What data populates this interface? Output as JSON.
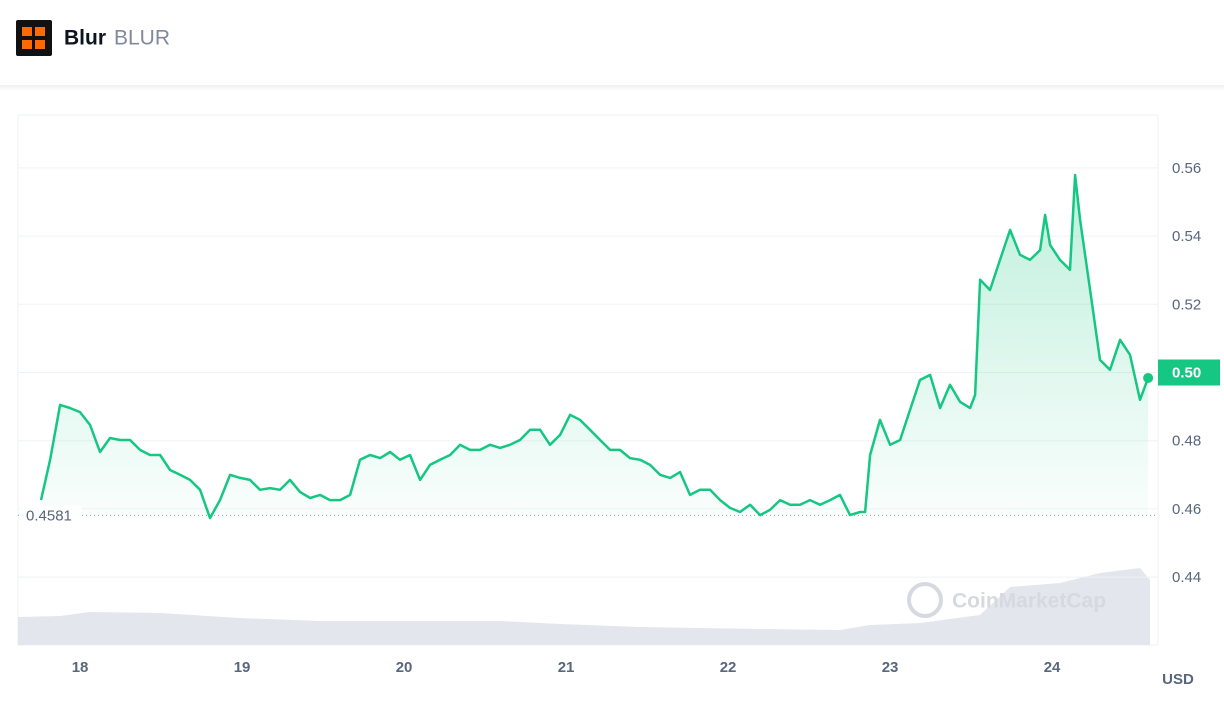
{
  "header": {
    "name": "Blur",
    "symbol": "BLUR"
  },
  "chart_data": {
    "type": "line",
    "color": "#16c784",
    "x": [
      17.759,
      17.815,
      17.877,
      17.938,
      18.0,
      18.062,
      18.123,
      18.185,
      18.247,
      18.309,
      18.37,
      18.432,
      18.494,
      18.556,
      18.617,
      18.679,
      18.741,
      18.802,
      18.864,
      18.926,
      18.988,
      19.049,
      19.111,
      19.173,
      19.235,
      19.296,
      19.358,
      19.42,
      19.481,
      19.543,
      19.605,
      19.667,
      19.728,
      19.79,
      19.852,
      19.914,
      19.975,
      20.037,
      20.099,
      20.16,
      20.222,
      20.284,
      20.346,
      20.407,
      20.469,
      20.531,
      20.593,
      20.654,
      20.716,
      20.778,
      20.84,
      20.901,
      20.963,
      21.025,
      21.086,
      21.148,
      21.21,
      21.272,
      21.333,
      21.395,
      21.457,
      21.519,
      21.58,
      21.642,
      21.704,
      21.765,
      21.827,
      21.889,
      21.951,
      22.012,
      22.074,
      22.136,
      22.198,
      22.259,
      22.321,
      22.383,
      22.444,
      22.506,
      22.568,
      22.63,
      22.691,
      22.753,
      22.815,
      22.846,
      22.877,
      22.938,
      23.0,
      23.062,
      23.123,
      23.185,
      23.247,
      23.309,
      23.37,
      23.432,
      23.494,
      23.525,
      23.556,
      23.617,
      23.679,
      23.741,
      23.802,
      23.864,
      23.926,
      23.957,
      23.988,
      24.049,
      24.111,
      24.142,
      24.173,
      24.235,
      24.296,
      24.358,
      24.42,
      24.481,
      24.543,
      24.593
    ],
    "values": [
      0.4626,
      0.4744,
      0.4905,
      0.4896,
      0.4884,
      0.4846,
      0.4767,
      0.4808,
      0.4802,
      0.4802,
      0.4773,
      0.4758,
      0.4758,
      0.4714,
      0.47,
      0.4685,
      0.4656,
      0.4573,
      0.4626,
      0.47,
      0.4691,
      0.4685,
      0.4656,
      0.4661,
      0.4656,
      0.4685,
      0.465,
      0.4632,
      0.4641,
      0.4626,
      0.4626,
      0.4641,
      0.4744,
      0.4758,
      0.4749,
      0.4767,
      0.4744,
      0.4758,
      0.4685,
      0.4729,
      0.4744,
      0.4758,
      0.4788,
      0.4773,
      0.4773,
      0.4788,
      0.4779,
      0.4788,
      0.4802,
      0.4832,
      0.4832,
      0.4788,
      0.4817,
      0.4876,
      0.4861,
      0.4832,
      0.4802,
      0.4773,
      0.4773,
      0.4749,
      0.4744,
      0.4729,
      0.47,
      0.4691,
      0.4708,
      0.4641,
      0.4656,
      0.4656,
      0.4626,
      0.4603,
      0.4591,
      0.4612,
      0.4582,
      0.4597,
      0.4626,
      0.4612,
      0.4612,
      0.4626,
      0.4612,
      0.4626,
      0.4641,
      0.4582,
      0.4591,
      0.4591,
      0.4758,
      0.4861,
      0.4788,
      0.4802,
      0.489,
      0.4978,
      0.4993,
      0.4896,
      0.4964,
      0.4914,
      0.4896,
      0.4934,
      0.5272,
      0.5242,
      0.533,
      0.5418,
      0.5345,
      0.533,
      0.5359,
      0.5462,
      0.5374,
      0.533,
      0.5301,
      0.5579,
      0.5447,
      0.5242,
      0.5037,
      0.5008,
      0.5096,
      0.5052,
      0.492,
      0.4984
    ],
    "xlim": [
      17.617,
      24.654
    ],
    "xticks": [
      18,
      19,
      20,
      21,
      22,
      23,
      24
    ],
    "ylim": [
      0.4201,
      0.5755
    ],
    "yticks": [
      0.44,
      0.46,
      0.48,
      {
        "value": 0.5,
        "label": "0.50"
      },
      0.52,
      0.54,
      0.56
    ],
    "grid": true,
    "reference_line": 0.4581,
    "y_unit": "USD",
    "watermark": "CoinMarketCap"
  }
}
